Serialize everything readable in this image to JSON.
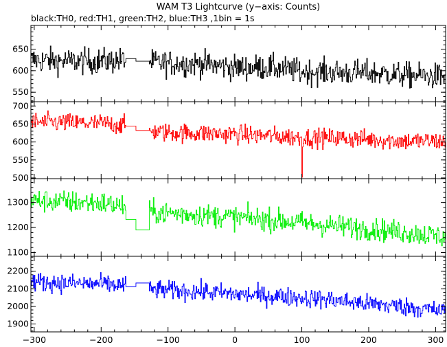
{
  "chart_data": {
    "type": "line",
    "title": "WAM T3 Lightcurve (y−axis: Counts)",
    "subtitle": "black:TH0, red:TH1, green:TH2, blue:TH3 ,1bin = 1s",
    "xlim": [
      -305,
      315
    ],
    "xticks": [
      -300,
      -200,
      -100,
      0,
      100,
      200,
      300
    ],
    "xtick_labels": [
      "−300",
      "−200",
      "−100",
      "0",
      "100",
      "200",
      "300"
    ],
    "gap": {
      "start": -163,
      "end": -128
    },
    "panels": [
      {
        "color": "#000000",
        "ylim": [
          528,
          705
        ],
        "yticks": [
          550,
          600,
          650
        ],
        "points": [
          [
            -305,
            625
          ],
          [
            -250,
            622
          ],
          [
            -200,
            622
          ],
          [
            -163,
            624
          ],
          [
            -163,
            628
          ],
          [
            -148,
            628
          ],
          [
            -148,
            622
          ],
          [
            -128,
            622
          ],
          [
            -128,
            619
          ],
          [
            -100,
            617
          ],
          [
            -50,
            616
          ],
          [
            0,
            607
          ],
          [
            50,
            608
          ],
          [
            100,
            598
          ],
          [
            150,
            596
          ],
          [
            200,
            595
          ],
          [
            250,
            590
          ],
          [
            300,
            587
          ],
          [
            315,
            586
          ]
        ],
        "noise": 25
      },
      {
        "color": "#ff0000",
        "ylim": [
          498,
          712
        ],
        "yticks": [
          500,
          550,
          600,
          650,
          700
        ],
        "points": [
          [
            -305,
            656
          ],
          [
            -250,
            653
          ],
          [
            -200,
            652
          ],
          [
            -163,
            646
          ],
          [
            -163,
            644
          ],
          [
            -148,
            644
          ],
          [
            -148,
            632
          ],
          [
            -128,
            632
          ],
          [
            -128,
            630
          ],
          [
            -100,
            626
          ],
          [
            -50,
            624
          ],
          [
            0,
            622
          ],
          [
            50,
            617
          ],
          [
            100,
            612
          ],
          [
            150,
            611
          ],
          [
            200,
            608
          ],
          [
            250,
            603
          ],
          [
            300,
            602
          ],
          [
            315,
            600
          ]
        ],
        "noise": 22,
        "dips": [
          [
            100,
            502
          ]
        ]
      },
      {
        "color": "#00ee00",
        "ylim": [
          1085,
          1395
        ],
        "yticks": [
          1100,
          1200,
          1300
        ],
        "points": [
          [
            -305,
            1308
          ],
          [
            -250,
            1302
          ],
          [
            -200,
            1298
          ],
          [
            -163,
            1283
          ],
          [
            -163,
            1232
          ],
          [
            -148,
            1232
          ],
          [
            -148,
            1190
          ],
          [
            -128,
            1190
          ],
          [
            -128,
            1262
          ],
          [
            -100,
            1258
          ],
          [
            -50,
            1250
          ],
          [
            0,
            1240
          ],
          [
            50,
            1232
          ],
          [
            100,
            1218
          ],
          [
            150,
            1206
          ],
          [
            200,
            1195
          ],
          [
            250,
            1182
          ],
          [
            300,
            1168
          ],
          [
            315,
            1162
          ]
        ],
        "noise": 38
      },
      {
        "color": "#0000ff",
        "ylim": [
          1855,
          2285
        ],
        "yticks": [
          1900,
          2000,
          2100,
          2200
        ],
        "points": [
          [
            -305,
            2140
          ],
          [
            -250,
            2132
          ],
          [
            -200,
            2127
          ],
          [
            -163,
            2118
          ],
          [
            -163,
            2113
          ],
          [
            -148,
            2113
          ],
          [
            -148,
            2133
          ],
          [
            -128,
            2133
          ],
          [
            -128,
            2098
          ],
          [
            -100,
            2092
          ],
          [
            -50,
            2084
          ],
          [
            0,
            2070
          ],
          [
            50,
            2060
          ],
          [
            100,
            2050
          ],
          [
            150,
            2035
          ],
          [
            200,
            2015
          ],
          [
            250,
            2000
          ],
          [
            300,
            1978
          ],
          [
            315,
            1972
          ]
        ],
        "noise": 45
      }
    ]
  }
}
